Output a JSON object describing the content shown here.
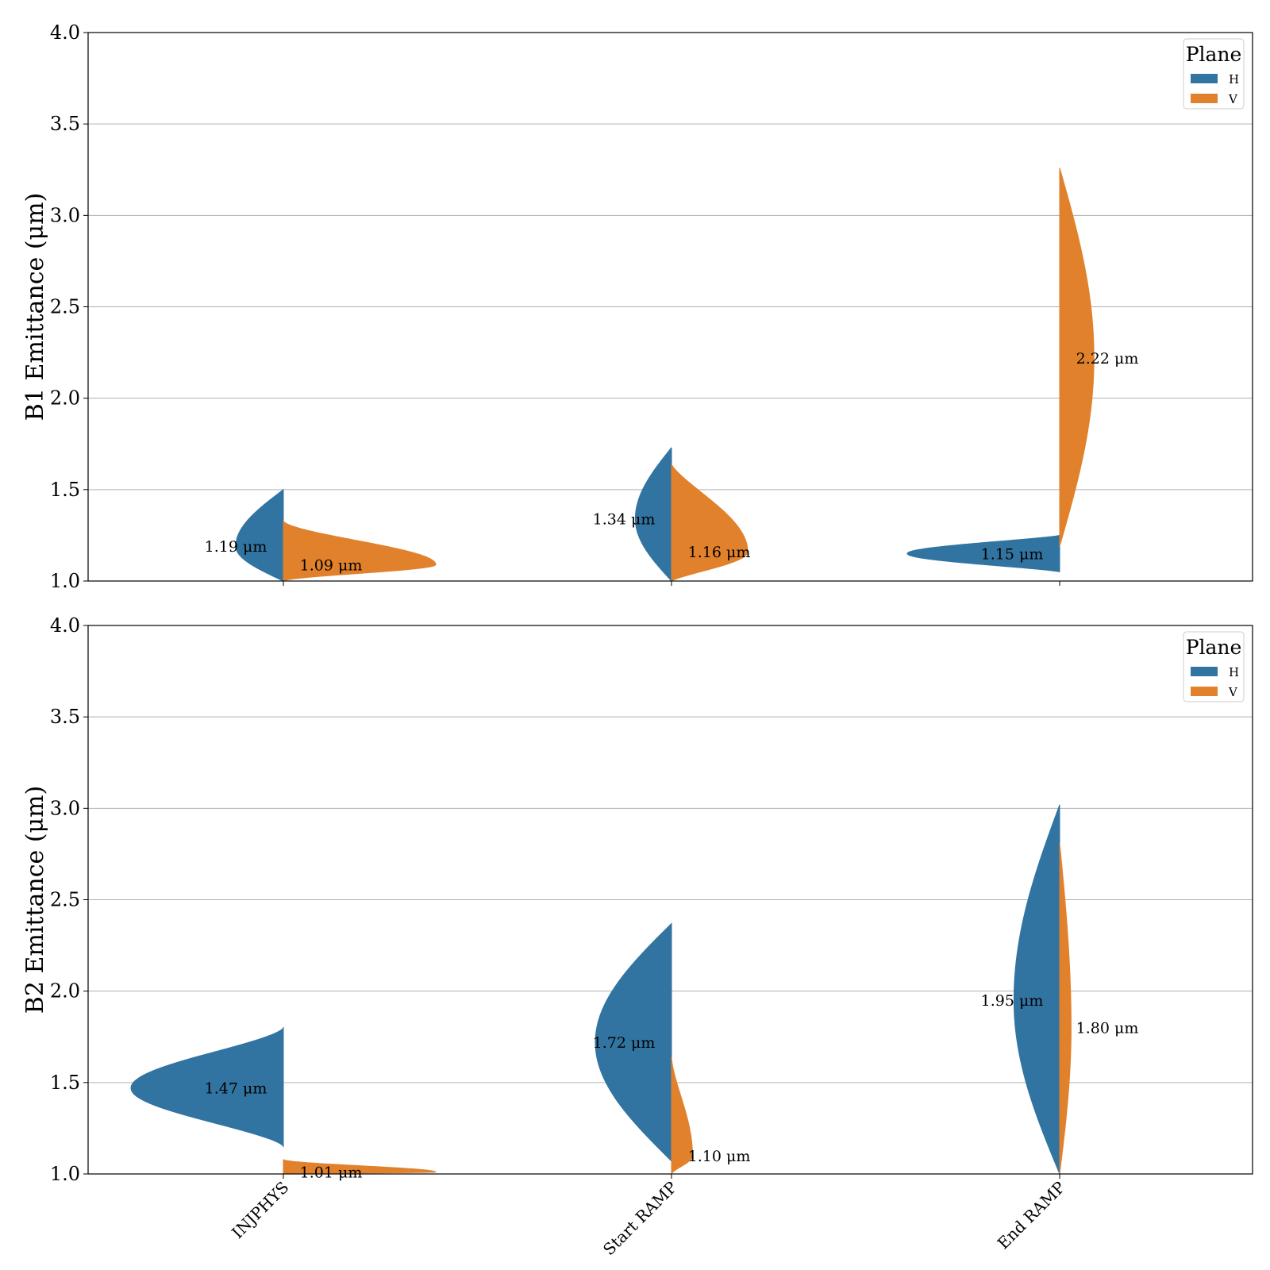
{
  "chart_data": {
    "type": "violin",
    "categories": [
      "INJPHYS",
      "Start RAMP",
      "End RAMP"
    ],
    "ylim": [
      1.0,
      4.0
    ],
    "yticks": [
      1.0,
      1.5,
      2.0,
      2.5,
      3.0,
      3.5,
      4.0
    ],
    "grid": "y",
    "legend_position": "top-right",
    "legend_title": "Plane",
    "series_colors": {
      "H": "#3274a1",
      "V": "#e1812c"
    },
    "unit_label": "μm",
    "panels": [
      {
        "ylabel": "B1 Emittance (μm)",
        "violins": [
          {
            "category": "INJPHYS",
            "plane": "H",
            "min": 1.0,
            "max": 1.5,
            "mode": 1.19,
            "max_density": 0.25,
            "skew": 1.0,
            "label": "1.19 μm"
          },
          {
            "category": "INJPHYS",
            "plane": "V",
            "min": 1.0,
            "max": 1.33,
            "mode": 1.09,
            "max_density": 0.8,
            "skew": 1.7,
            "label": "1.09 μm"
          },
          {
            "category": "Start RAMP",
            "plane": "H",
            "min": 1.0,
            "max": 1.73,
            "mode": 1.34,
            "max_density": 0.19,
            "skew": 1.0,
            "label": "1.34 μm"
          },
          {
            "category": "Start RAMP",
            "plane": "V",
            "min": 1.0,
            "max": 1.64,
            "mode": 1.16,
            "max_density": 0.4,
            "skew": 1.3,
            "label": "1.16 μm"
          },
          {
            "category": "End RAMP",
            "plane": "H",
            "min": 1.05,
            "max": 1.25,
            "mode": 1.15,
            "max_density": 0.8,
            "skew": 1.3,
            "label": "1.15 μm"
          },
          {
            "category": "End RAMP",
            "plane": "V",
            "min": 1.19,
            "max": 3.26,
            "mode": 2.22,
            "max_density": 0.18,
            "skew": 1.0,
            "label": "2.22 μm"
          }
        ]
      },
      {
        "ylabel": "B2 Emittance (μm)",
        "violins": [
          {
            "category": "INJPHYS",
            "plane": "H",
            "min": 1.15,
            "max": 1.8,
            "mode": 1.47,
            "max_density": 0.8,
            "skew": 1.5,
            "label": "1.47 μm"
          },
          {
            "category": "INJPHYS",
            "plane": "V",
            "min": 1.0,
            "max": 1.08,
            "mode": 1.01,
            "max_density": 0.8,
            "skew": 2.0,
            "label": "1.01 μm"
          },
          {
            "category": "Start RAMP",
            "plane": "H",
            "min": 1.07,
            "max": 2.37,
            "mode": 1.72,
            "max_density": 0.4,
            "skew": 1.0,
            "label": "1.72 μm"
          },
          {
            "category": "Start RAMP",
            "plane": "V",
            "min": 1.0,
            "max": 1.64,
            "mode": 1.1,
            "max_density": 0.11,
            "skew": 1.5,
            "label": "1.10 μm"
          },
          {
            "category": "End RAMP",
            "plane": "H",
            "min": 1.0,
            "max": 3.02,
            "mode": 1.95,
            "max_density": 0.24,
            "skew": 1.0,
            "label": "1.95 μm"
          },
          {
            "category": "End RAMP",
            "plane": "V",
            "min": 1.0,
            "max": 2.81,
            "mode": 1.8,
            "max_density": 0.06,
            "skew": 1.0,
            "label": "1.80 μm"
          }
        ]
      }
    ]
  }
}
